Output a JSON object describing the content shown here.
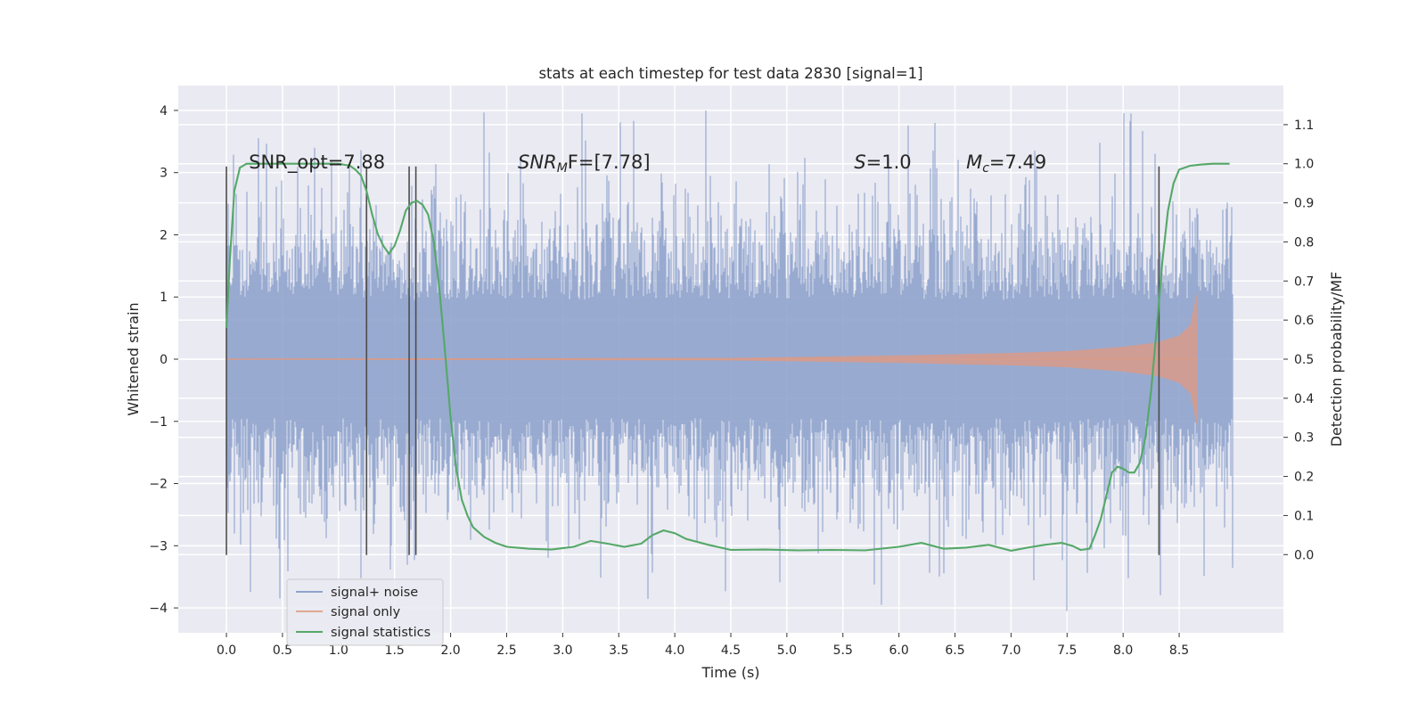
{
  "chart_data": {
    "type": "line",
    "title": "stats at each timestep for test data 2830 [signal=1]",
    "xlabel": "Time (s)",
    "ylabel": "Whitened strain",
    "ylabel_right": "Detection probability/MF",
    "xlim": [
      -0.43,
      9.43
    ],
    "ylim": [
      -4.4,
      4.4
    ],
    "ylim_right": [
      -0.2,
      1.2
    ],
    "x_ticks": [
      "0.0",
      "0.5",
      "1.0",
      "1.5",
      "2.0",
      "2.5",
      "3.0",
      "3.5",
      "4.0",
      "4.5",
      "5.0",
      "5.5",
      "6.0",
      "6.5",
      "7.0",
      "7.5",
      "8.0",
      "8.5"
    ],
    "y_ticks": [
      "−4",
      "−3",
      "−2",
      "−1",
      "0",
      "1",
      "2",
      "3",
      "4"
    ],
    "y_right_ticks": [
      "0.0",
      "0.1",
      "0.2",
      "0.3",
      "0.4",
      "0.5",
      "0.6",
      "0.7",
      "0.8",
      "0.9",
      "1.0",
      "1.1"
    ],
    "grid": true,
    "legend": {
      "placement": "lower-left",
      "entries": [
        {
          "label": "signal+ noise",
          "color": "#8fa3cc"
        },
        {
          "label": "signal only",
          "color": "#e0a98f"
        },
        {
          "label": "signal statistics",
          "color": "#55a868"
        }
      ]
    },
    "annotations": [
      {
        "text": "SNR_opt=7.88",
        "x": 0.2,
        "y": 3.15
      },
      {
        "text_main": "SNR",
        "text_sub": "M",
        "text_rest": "F=[7.78]",
        "x": 2.6,
        "y": 3.15
      },
      {
        "text_main": "S",
        "text_rest": "=1.0",
        "x": 5.6,
        "y": 3.15
      },
      {
        "text_main": "M",
        "text_sub": "c",
        "text_rest": "=7.49",
        "x": 6.6,
        "y": 3.15
      }
    ],
    "vertical_lines": [
      0.0,
      1.25,
      1.63,
      1.69,
      8.32
    ],
    "series": [
      {
        "name": "signal+ noise",
        "color": "#8fa3cc",
        "x_range": [
          0,
          8.98
        ],
        "envelope": "noise approximately within ±2.3 with occasional spikes to about ±4"
      },
      {
        "name": "signal only",
        "color": "#e0a98f",
        "x_range": [
          0,
          8.66
        ],
        "envelope_x": [
          0,
          4.5,
          6.0,
          7.0,
          7.5,
          8.0,
          8.3,
          8.5,
          8.6,
          8.64,
          8.66
        ],
        "envelope_y": [
          0.01,
          0.02,
          0.06,
          0.1,
          0.13,
          0.2,
          0.27,
          0.38,
          0.55,
          0.9,
          1.08
        ]
      },
      {
        "name": "signal statistics",
        "color": "#55a868",
        "axis": "right",
        "x": [
          0.0,
          0.03,
          0.07,
          0.12,
          0.18,
          0.25,
          0.4,
          0.6,
          0.8,
          1.0,
          1.1,
          1.15,
          1.2,
          1.25,
          1.3,
          1.35,
          1.4,
          1.45,
          1.5,
          1.55,
          1.6,
          1.65,
          1.7,
          1.75,
          1.8,
          1.85,
          1.9,
          1.95,
          2.0,
          2.05,
          2.1,
          2.15,
          2.2,
          2.3,
          2.4,
          2.5,
          2.7,
          2.9,
          3.1,
          3.25,
          3.4,
          3.55,
          3.7,
          3.8,
          3.9,
          4.0,
          4.1,
          4.3,
          4.5,
          4.8,
          5.1,
          5.4,
          5.7,
          6.0,
          6.2,
          6.4,
          6.6,
          6.8,
          7.0,
          7.15,
          7.3,
          7.45,
          7.55,
          7.62,
          7.7,
          7.75,
          7.8,
          7.85,
          7.9,
          7.95,
          8.0,
          8.05,
          8.1,
          8.15,
          8.2,
          8.25,
          8.3,
          8.35,
          8.4,
          8.45,
          8.5,
          8.6,
          8.7,
          8.8,
          8.95
        ],
        "y": [
          0.58,
          0.75,
          0.93,
          0.99,
          1.0,
          1.0,
          1.0,
          1.0,
          1.0,
          1.0,
          0.995,
          0.985,
          0.97,
          0.93,
          0.87,
          0.82,
          0.79,
          0.77,
          0.79,
          0.83,
          0.88,
          0.9,
          0.905,
          0.895,
          0.87,
          0.8,
          0.68,
          0.52,
          0.35,
          0.22,
          0.14,
          0.1,
          0.07,
          0.045,
          0.03,
          0.02,
          0.015,
          0.013,
          0.02,
          0.035,
          0.028,
          0.02,
          0.028,
          0.05,
          0.062,
          0.055,
          0.04,
          0.025,
          0.012,
          0.013,
          0.011,
          0.012,
          0.011,
          0.02,
          0.03,
          0.015,
          0.018,
          0.025,
          0.01,
          0.018,
          0.025,
          0.03,
          0.022,
          0.012,
          0.015,
          0.05,
          0.09,
          0.15,
          0.21,
          0.225,
          0.22,
          0.21,
          0.21,
          0.235,
          0.3,
          0.42,
          0.58,
          0.75,
          0.88,
          0.95,
          0.985,
          0.995,
          0.998,
          1.0,
          1.0
        ]
      }
    ]
  }
}
